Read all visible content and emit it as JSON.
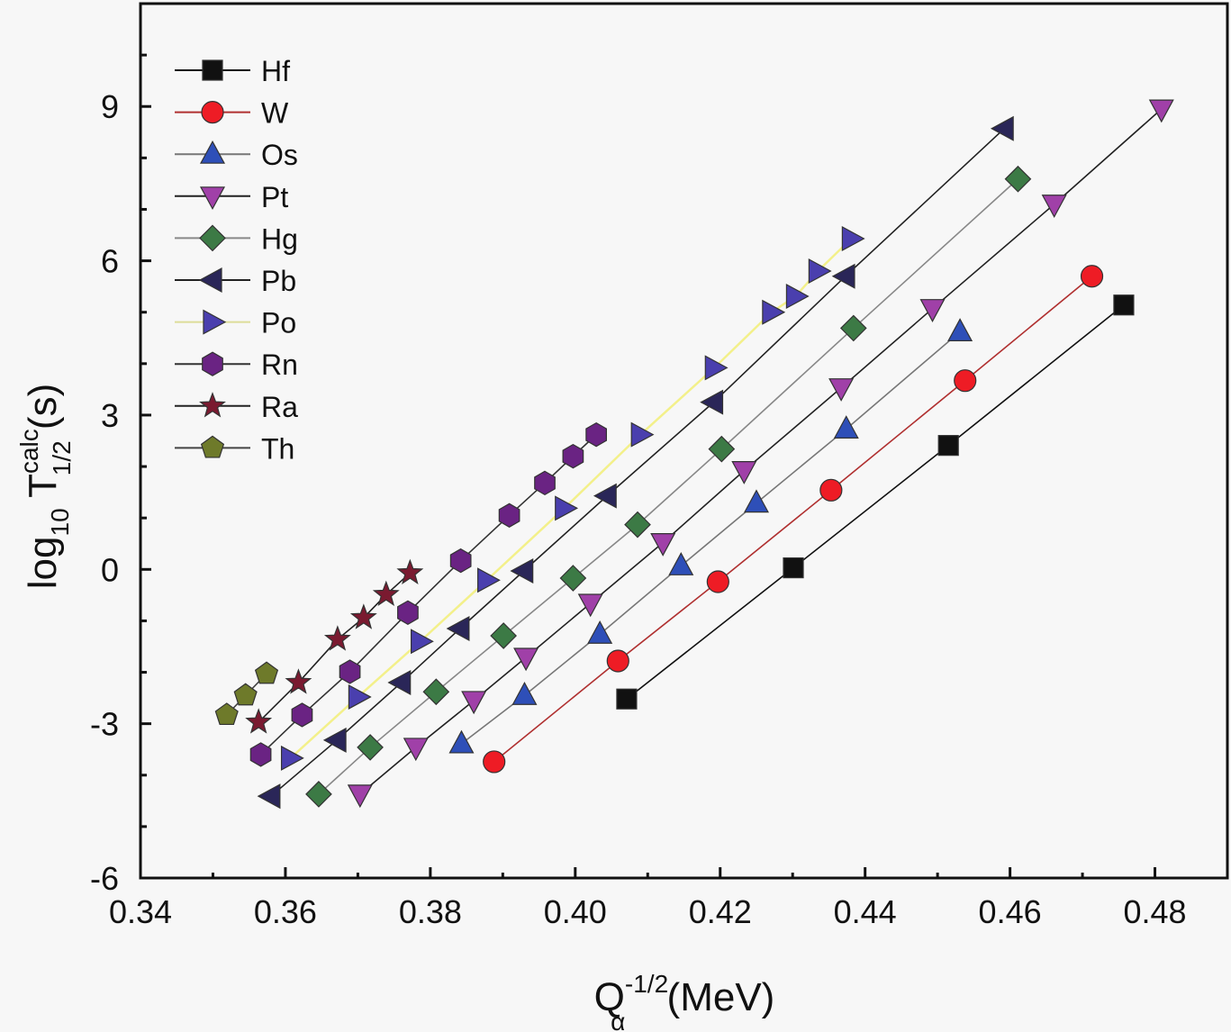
{
  "chart_data": {
    "type": "scatter",
    "title": "",
    "xlabel": "Q_α^-1/2 (MeV)",
    "xlabel_parts": {
      "main": "Q",
      "sub": "α",
      "sup": "-1/2",
      "unit": " (MeV)"
    },
    "ylabel": "log10 T1/2calc (s)",
    "ylabel_parts": {
      "main": "log",
      "sub1": "10",
      "T": " T",
      "sup": "calc",
      "sub2": "1/2",
      "unit": " (s)"
    },
    "xlim": [
      0.34,
      0.49
    ],
    "ylim": [
      -6,
      11
    ],
    "xticks": [
      0.34,
      0.36,
      0.38,
      0.4,
      0.42,
      0.44,
      0.46,
      0.48
    ],
    "xtick_labels": [
      "0.34",
      "0.36",
      "0.38",
      "0.40",
      "0.42",
      "0.44",
      "0.46",
      "0.48"
    ],
    "yticks": [
      -6,
      -3,
      0,
      3,
      6,
      9
    ],
    "ytick_labels": [
      "-6",
      "-3",
      "0",
      "3",
      "6",
      "9"
    ],
    "x_minor_step": 0.01,
    "y_minor_step": 1,
    "grid": false,
    "legend_position": "top-left",
    "series": [
      {
        "name": "Hf",
        "marker": "square",
        "color": "#111111",
        "line_color": "#111111",
        "x": [
          0.4071,
          0.4301,
          0.4515,
          0.4757
        ],
        "y": [
          -2.52,
          0.03,
          2.41,
          5.14
        ]
      },
      {
        "name": "W",
        "marker": "circle",
        "color": "#ee1c25",
        "line_color": "#b03030",
        "x": [
          0.3888,
          0.4059,
          0.4197,
          0.4353,
          0.4538,
          0.4713
        ],
        "y": [
          -3.74,
          -1.78,
          -0.24,
          1.54,
          3.67,
          5.7
        ]
      },
      {
        "name": "Os",
        "marker": "triangle-up",
        "color": "#2e4fb8",
        "line_color": "#777777",
        "x": [
          0.3843,
          0.393,
          0.4034,
          0.4146,
          0.425,
          0.4374,
          0.4531
        ],
        "y": [
          -3.39,
          -2.45,
          -1.26,
          0.07,
          1.29,
          2.73,
          4.62
        ]
      },
      {
        "name": "Pt",
        "marker": "triangle-down",
        "color": "#a040a8",
        "line_color": "#222222",
        "x": [
          0.3703,
          0.378,
          0.386,
          0.3932,
          0.4021,
          0.4121,
          0.4233,
          0.4367,
          0.4493,
          0.4661,
          0.4809
        ],
        "y": [
          -4.37,
          -3.46,
          -2.55,
          -1.71,
          -0.66,
          0.52,
          1.92,
          3.53,
          5.07,
          7.1,
          8.95
        ]
      },
      {
        "name": "Hg",
        "marker": "diamond",
        "color": "#3c7a45",
        "line_color": "#888888",
        "x": [
          0.3646,
          0.3717,
          0.3808,
          0.3901,
          0.3997,
          0.4086,
          0.4202,
          0.4384,
          0.4611
        ],
        "y": [
          -4.37,
          -3.46,
          -2.38,
          -1.29,
          -0.17,
          0.87,
          2.34,
          4.69,
          7.59
        ]
      },
      {
        "name": "Pb",
        "marker": "triangle-left",
        "color": "#2a2658",
        "line_color": "#222222",
        "x": [
          0.358,
          0.3671,
          0.376,
          0.3841,
          0.3929,
          0.4044,
          0.4191,
          0.4373,
          0.4592
        ],
        "y": [
          -4.41,
          -3.32,
          -2.2,
          -1.15,
          -0.03,
          1.43,
          3.25,
          5.7,
          8.57
        ]
      },
      {
        "name": "Po",
        "marker": "triangle-right",
        "color": "#4a3fae",
        "line_color": "#f3f08a",
        "x": [
          0.3607,
          0.37,
          0.3786,
          0.3878,
          0.3985,
          0.409,
          0.4192,
          0.4271,
          0.4304,
          0.4335,
          0.4381
        ],
        "y": [
          -3.67,
          -2.48,
          -1.4,
          -0.21,
          1.19,
          2.62,
          3.92,
          5.0,
          5.31,
          5.8,
          6.43
        ]
      },
      {
        "name": "Rn",
        "marker": "hexagon",
        "color": "#6a2383",
        "line_color": "#333333",
        "x": [
          0.3566,
          0.3623,
          0.3689,
          0.3769,
          0.3842,
          0.3909,
          0.3958,
          0.3997,
          0.4029
        ],
        "y": [
          -3.6,
          -2.83,
          -1.99,
          -0.84,
          0.17,
          1.05,
          1.68,
          2.2,
          2.62
        ]
      },
      {
        "name": "Ra",
        "marker": "star",
        "color": "#7a1a30",
        "line_color": "#222222",
        "x": [
          0.3563,
          0.3618,
          0.3672,
          0.3708,
          0.3739,
          0.3772
        ],
        "y": [
          -2.97,
          -2.2,
          -1.36,
          -0.94,
          -0.49,
          -0.07
        ]
      },
      {
        "name": "Th",
        "marker": "pentagon",
        "color": "#6e7a2a",
        "line_color": "#444444",
        "x": [
          0.3519,
          0.3545,
          0.3574
        ],
        "y": [
          -2.83,
          -2.45,
          -2.03
        ]
      }
    ]
  }
}
